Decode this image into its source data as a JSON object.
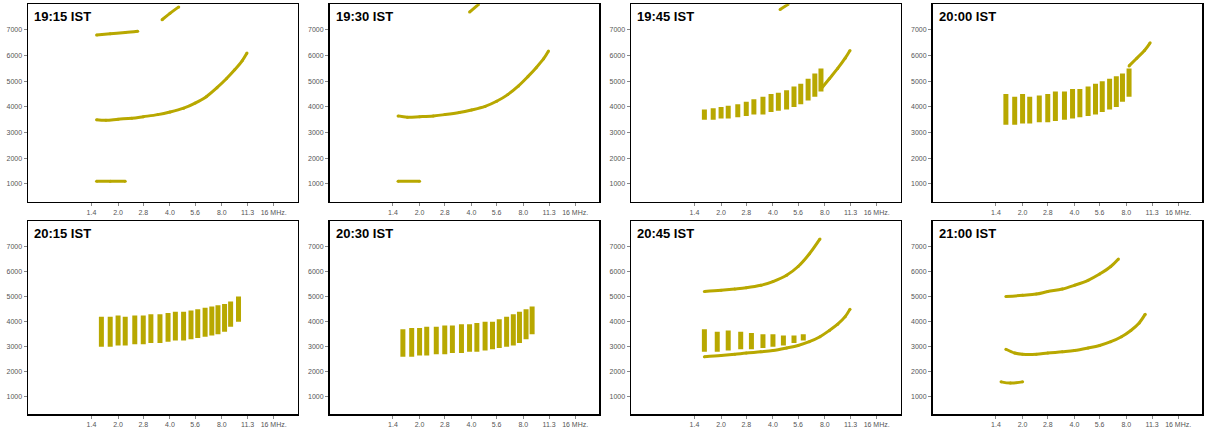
{
  "chart_data": [
    {
      "type": "scatter",
      "title": "19:15 IST",
      "log": "x",
      "xlim": [
        0.6,
        22
      ],
      "ylim": [
        300,
        8000
      ],
      "xticks": [
        {
          "value": 1.4,
          "label": "1.4"
        },
        {
          "value": 2,
          "label": "2.0"
        },
        {
          "value": 2.8,
          "label": "2.8"
        },
        {
          "value": 4,
          "label": "4.0"
        },
        {
          "value": 5.6,
          "label": "5.6"
        },
        {
          "value": 8,
          "label": "8.0"
        },
        {
          "value": 11.3,
          "label": "11.3"
        },
        {
          "value": 16,
          "label": "16 MHz."
        }
      ],
      "yticks": [
        1000,
        2000,
        3000,
        4000,
        5000,
        6000,
        7000
      ],
      "series": [
        {
          "type": "line",
          "color": "#b8a800",
          "x": [
            1.5,
            1.7,
            2.0,
            2.4,
            2.8,
            3.4,
            4.0,
            4.8,
            5.6,
            6.5,
            7.5,
            8.5,
            9.5,
            10.5,
            11.2
          ],
          "values": [
            3500,
            3480,
            3520,
            3560,
            3620,
            3700,
            3800,
            3950,
            4150,
            4400,
            4750,
            5100,
            5450,
            5800,
            6100
          ]
        },
        {
          "type": "line",
          "color": "#b8a800",
          "x": [
            1.5,
            1.8,
            2.2,
            2.6
          ],
          "values": [
            6800,
            6850,
            6900,
            6950
          ]
        },
        {
          "type": "line",
          "color": "#b8a800",
          "x": [
            3.6,
            4.0,
            4.5
          ],
          "values": [
            7400,
            7650,
            7900
          ]
        },
        {
          "type": "line",
          "color": "#b8a800",
          "x": [
            1.5,
            1.8,
            2.2
          ],
          "values": [
            1100,
            1100,
            1100
          ]
        }
      ]
    },
    {
      "type": "scatter",
      "title": "19:30 IST",
      "log": "x",
      "xlim": [
        0.6,
        22
      ],
      "ylim": [
        300,
        8000
      ],
      "xticks": [
        {
          "value": 1.4,
          "label": "1.4"
        },
        {
          "value": 2,
          "label": "2.0"
        },
        {
          "value": 2.8,
          "label": "2.8"
        },
        {
          "value": 4,
          "label": "4.0"
        },
        {
          "value": 5.6,
          "label": "5.6"
        },
        {
          "value": 8,
          "label": "8.0"
        },
        {
          "value": 11.3,
          "label": "11.3"
        },
        {
          "value": 16,
          "label": "16 MHz."
        }
      ],
      "yticks": [
        1000,
        2000,
        3000,
        4000,
        5000,
        6000,
        7000
      ],
      "series": [
        {
          "type": "line",
          "color": "#b8a800",
          "x": [
            1.5,
            1.7,
            2.0,
            2.4,
            2.8,
            3.4,
            4.0,
            4.8,
            5.6,
            6.5,
            7.5,
            8.5,
            9.5,
            10.5,
            11.2
          ],
          "values": [
            3650,
            3600,
            3620,
            3650,
            3700,
            3780,
            3880,
            4020,
            4220,
            4480,
            4820,
            5180,
            5530,
            5880,
            6180
          ]
        },
        {
          "type": "line",
          "color": "#b8a800",
          "x": [
            3.9,
            4.4
          ],
          "values": [
            7700,
            8000
          ]
        },
        {
          "type": "line",
          "color": "#b8a800",
          "x": [
            1.5,
            2.0
          ],
          "values": [
            1100,
            1100
          ]
        }
      ]
    },
    {
      "type": "scatter",
      "title": "19:45 IST",
      "log": "x",
      "xlim": [
        0.6,
        22
      ],
      "ylim": [
        300,
        8000
      ],
      "xticks": [
        {
          "value": 1.4,
          "label": "1.4"
        },
        {
          "value": 2,
          "label": "2.0"
        },
        {
          "value": 2.8,
          "label": "2.8"
        },
        {
          "value": 4,
          "label": "4.0"
        },
        {
          "value": 5.6,
          "label": "5.6"
        },
        {
          "value": 8,
          "label": "8.0"
        },
        {
          "value": 11.3,
          "label": "11.3"
        },
        {
          "value": 16,
          "label": "16 MHz."
        }
      ],
      "yticks": [
        1000,
        2000,
        3000,
        4000,
        5000,
        6000,
        7000
      ],
      "series": [
        {
          "type": "range",
          "color": "#b8a800",
          "x": [
            1.6,
            1.8,
            2.0,
            2.2,
            2.5,
            2.8,
            3.1,
            3.5,
            3.9,
            4.3,
            4.8,
            5.3,
            5.8,
            6.4,
            7.0,
            7.6
          ],
          "low": [
            3500,
            3500,
            3550,
            3550,
            3600,
            3650,
            3700,
            3700,
            3800,
            3850,
            3900,
            4000,
            4100,
            4250,
            4400,
            4600
          ],
          "high": [
            3900,
            3950,
            4000,
            4050,
            4100,
            4200,
            4300,
            4400,
            4500,
            4550,
            4650,
            4800,
            4900,
            5100,
            5300,
            5500
          ]
        },
        {
          "type": "line",
          "color": "#b8a800",
          "x": [
            7.6,
            8.5,
            9.5,
            10.5,
            11.2
          ],
          "values": [
            4700,
            5100,
            5500,
            5900,
            6200
          ]
        },
        {
          "type": "line",
          "color": "#b8a800",
          "x": [
            4.4,
            4.9
          ],
          "values": [
            7800,
            8000
          ]
        }
      ]
    },
    {
      "type": "scatter",
      "title": "20:00 IST",
      "log": "x",
      "xlim": [
        0.6,
        22
      ],
      "ylim": [
        300,
        8000
      ],
      "xticks": [
        {
          "value": 1.4,
          "label": "1.4"
        },
        {
          "value": 2,
          "label": "2.0"
        },
        {
          "value": 2.8,
          "label": "2.8"
        },
        {
          "value": 4,
          "label": "4.0"
        },
        {
          "value": 5.6,
          "label": "5.6"
        },
        {
          "value": 8,
          "label": "8.0"
        },
        {
          "value": 11.3,
          "label": "11.3"
        },
        {
          "value": 16,
          "label": "16 MHz."
        }
      ],
      "yticks": [
        1000,
        2000,
        3000,
        4000,
        5000,
        6000,
        7000
      ],
      "series": [
        {
          "type": "range",
          "color": "#b8a800",
          "x": [
            1.6,
            1.8,
            2.0,
            2.2,
            2.5,
            2.8,
            3.1,
            3.5,
            3.9,
            4.3,
            4.8,
            5.3,
            5.8,
            6.4,
            7.0,
            7.6,
            8.3
          ],
          "low": [
            3300,
            3300,
            3350,
            3350,
            3400,
            3400,
            3450,
            3500,
            3550,
            3600,
            3650,
            3700,
            3800,
            3900,
            4000,
            4200,
            4400
          ],
          "high": [
            4500,
            4400,
            4500,
            4400,
            4450,
            4500,
            4600,
            4600,
            4700,
            4700,
            4800,
            4900,
            5000,
            5100,
            5200,
            5300,
            5500
          ]
        },
        {
          "type": "line",
          "color": "#b8a800",
          "x": [
            8.3,
            9.2,
            10.2,
            11.0
          ],
          "values": [
            5600,
            5900,
            6200,
            6500
          ]
        }
      ]
    },
    {
      "type": "scatter",
      "title": "20:15 IST",
      "log": "x",
      "xlim": [
        0.6,
        22
      ],
      "ylim": [
        300,
        8000
      ],
      "xticks": [
        {
          "value": 1.4,
          "label": "1.4"
        },
        {
          "value": 2,
          "label": "2.0"
        },
        {
          "value": 2.8,
          "label": "2.8"
        },
        {
          "value": 4,
          "label": "4.0"
        },
        {
          "value": 5.6,
          "label": "5.6"
        },
        {
          "value": 8,
          "label": "8.0"
        },
        {
          "value": 11.3,
          "label": "11.3"
        },
        {
          "value": 16,
          "label": "16 MHz."
        }
      ],
      "yticks": [
        1000,
        2000,
        3000,
        4000,
        5000,
        6000,
        7000
      ],
      "series": [
        {
          "type": "range",
          "color": "#b8a800",
          "x": [
            1.6,
            1.8,
            2.0,
            2.2,
            2.5,
            2.8,
            3.1,
            3.5,
            3.9,
            4.3,
            4.8,
            5.3,
            5.8,
            6.4,
            7.0,
            7.6,
            8.3,
            9.0,
            10.0
          ],
          "low": [
            3000,
            3000,
            3050,
            3050,
            3100,
            3100,
            3150,
            3150,
            3200,
            3250,
            3250,
            3300,
            3350,
            3400,
            3450,
            3500,
            3600,
            3800,
            4000
          ],
          "high": [
            4200,
            4200,
            4250,
            4200,
            4250,
            4250,
            4300,
            4300,
            4350,
            4400,
            4400,
            4450,
            4500,
            4550,
            4600,
            4650,
            4700,
            4800,
            5000
          ]
        }
      ]
    },
    {
      "type": "scatter",
      "title": "20:30 IST",
      "log": "x",
      "xlim": [
        0.6,
        22
      ],
      "ylim": [
        300,
        8000
      ],
      "xticks": [
        {
          "value": 1.4,
          "label": "1.4"
        },
        {
          "value": 2,
          "label": "2.0"
        },
        {
          "value": 2.8,
          "label": "2.8"
        },
        {
          "value": 4,
          "label": "4.0"
        },
        {
          "value": 5.6,
          "label": "5.6"
        },
        {
          "value": 8,
          "label": "8.0"
        },
        {
          "value": 11.3,
          "label": "11.3"
        },
        {
          "value": 16,
          "label": "16 MHz."
        }
      ],
      "yticks": [
        1000,
        2000,
        3000,
        4000,
        5000,
        6000,
        7000
      ],
      "series": [
        {
          "type": "range",
          "color": "#b8a800",
          "x": [
            1.6,
            1.8,
            2.0,
            2.2,
            2.5,
            2.8,
            3.1,
            3.5,
            3.9,
            4.3,
            4.8,
            5.3,
            5.8,
            6.4,
            7.0,
            7.6,
            8.3,
            9.0
          ],
          "low": [
            2600,
            2600,
            2650,
            2650,
            2700,
            2700,
            2750,
            2750,
            2800,
            2800,
            2850,
            2900,
            2950,
            3000,
            3050,
            3150,
            3300,
            3500
          ],
          "high": [
            3700,
            3750,
            3750,
            3800,
            3800,
            3850,
            3850,
            3900,
            3900,
            3950,
            4000,
            4000,
            4100,
            4200,
            4300,
            4400,
            4500,
            4600
          ]
        }
      ]
    },
    {
      "type": "scatter",
      "title": "20:45 IST",
      "log": "x",
      "xlim": [
        0.6,
        22
      ],
      "ylim": [
        300,
        8000
      ],
      "xticks": [
        {
          "value": 1.4,
          "label": "1.4"
        },
        {
          "value": 2,
          "label": "2.0"
        },
        {
          "value": 2.8,
          "label": "2.8"
        },
        {
          "value": 4,
          "label": "4.0"
        },
        {
          "value": 5.6,
          "label": "5.6"
        },
        {
          "value": 8,
          "label": "8.0"
        },
        {
          "value": 11.3,
          "label": "11.3"
        },
        {
          "value": 16,
          "label": "16 MHz."
        }
      ],
      "yticks": [
        1000,
        2000,
        3000,
        4000,
        5000,
        6000,
        7000
      ],
      "series": [
        {
          "type": "line",
          "color": "#b8a800",
          "x": [
            1.6,
            2.0,
            2.4,
            2.8,
            3.4,
            4.0,
            4.8,
            5.6,
            6.5,
            7.5,
            8.5,
            9.5,
            10.5,
            11.2
          ],
          "values": [
            2600,
            2650,
            2700,
            2750,
            2800,
            2850,
            2950,
            3050,
            3200,
            3400,
            3650,
            3900,
            4200,
            4500
          ]
        },
        {
          "type": "range",
          "color": "#b8a800",
          "x": [
            1.6,
            1.9,
            2.2,
            2.6,
            3.0,
            3.5,
            4.0,
            4.6,
            5.3,
            6.0
          ],
          "low": [
            2800,
            2800,
            2850,
            2900,
            2900,
            2950,
            3000,
            3050,
            3150,
            3250
          ],
          "high": [
            3700,
            3600,
            3650,
            3600,
            3550,
            3500,
            3500,
            3450,
            3450,
            3500
          ]
        },
        {
          "type": "line",
          "color": "#b8a800",
          "x": [
            1.6,
            2.0,
            2.4,
            2.8,
            3.4,
            4.0,
            4.8,
            5.6,
            6.5,
            7.5
          ],
          "values": [
            5200,
            5250,
            5300,
            5350,
            5450,
            5600,
            5850,
            6200,
            6700,
            7300
          ]
        }
      ]
    },
    {
      "type": "scatter",
      "title": "21:00 IST",
      "log": "x",
      "xlim": [
        0.6,
        22
      ],
      "ylim": [
        300,
        8000
      ],
      "xticks": [
        {
          "value": 1.4,
          "label": "1.4"
        },
        {
          "value": 2,
          "label": "2.0"
        },
        {
          "value": 2.8,
          "label": "2.8"
        },
        {
          "value": 4,
          "label": "4.0"
        },
        {
          "value": 5.6,
          "label": "5.6"
        },
        {
          "value": 8,
          "label": "8.0"
        },
        {
          "value": 11.3,
          "label": "11.3"
        },
        {
          "value": 16,
          "label": "16 MHz."
        }
      ],
      "yticks": [
        1000,
        2000,
        3000,
        4000,
        5000,
        6000,
        7000
      ],
      "series": [
        {
          "type": "line",
          "color": "#b8a800",
          "x": [
            1.6,
            1.8,
            2.0,
            2.4,
            2.8,
            3.4,
            4.0,
            4.8,
            5.6,
            6.5,
            7.5,
            8.5,
            9.5,
            10.3
          ],
          "values": [
            2900,
            2750,
            2700,
            2700,
            2750,
            2800,
            2850,
            2950,
            3050,
            3200,
            3400,
            3650,
            3950,
            4300
          ]
        },
        {
          "type": "line",
          "color": "#b8a800",
          "x": [
            1.6,
            2.0,
            2.4,
            2.8,
            3.4,
            4.0,
            4.8,
            5.6,
            6.5,
            7.2
          ],
          "values": [
            5000,
            5050,
            5100,
            5200,
            5300,
            5450,
            5650,
            5900,
            6200,
            6500
          ]
        },
        {
          "type": "line",
          "color": "#b8a800",
          "x": [
            1.5,
            1.7,
            2.0
          ],
          "values": [
            1600,
            1550,
            1600
          ]
        }
      ]
    }
  ]
}
